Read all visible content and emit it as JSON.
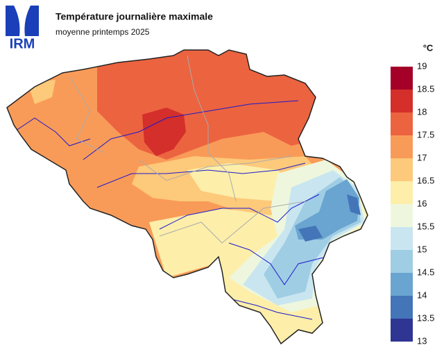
{
  "logo": {
    "text": "IRM"
  },
  "header": {
    "title": "Température journalière maximale",
    "subtitle": "moyenne printemps 2025"
  },
  "legend": {
    "unit": "°C",
    "ticks": [
      19,
      18.5,
      18,
      17.5,
      17,
      16.5,
      16,
      15.5,
      15,
      14.5,
      14,
      13.5,
      13
    ],
    "colors": [
      "#a50027",
      "#d42f2a",
      "#ec6340",
      "#f99b58",
      "#fdc97a",
      "#fdeeaa",
      "#eef7dd",
      "#c9e6f0",
      "#9fcde4",
      "#6aa4d0",
      "#4375b8",
      "#2f3593"
    ]
  }
}
